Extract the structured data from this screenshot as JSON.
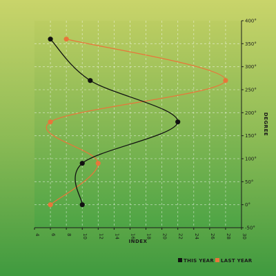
{
  "chart_data": {
    "type": "line",
    "xlabel": "INDEX",
    "ylabel": "DEGREE",
    "xlim": [
      4,
      30
    ],
    "ylim": [
      -50,
      400
    ],
    "x_ticks": [
      4,
      6,
      8,
      10,
      12,
      14,
      16,
      18,
      20,
      22,
      24,
      26,
      28,
      30
    ],
    "y_ticks": [
      -50,
      0,
      50,
      100,
      150,
      200,
      250,
      300,
      350,
      400
    ],
    "y_tick_labels": [
      "-50°",
      "0°",
      "50°",
      "100°",
      "150°",
      "200°",
      "250°",
      "300°",
      "350°",
      "400°"
    ],
    "grid": true,
    "legend_position": "bottom-right",
    "series": [
      {
        "name": "THIS YEAR",
        "color": "#111111",
        "points": [
          {
            "x": 10,
            "y": 0
          },
          {
            "x": 10,
            "y": 90
          },
          {
            "x": 22,
            "y": 180
          },
          {
            "x": 11,
            "y": 270
          },
          {
            "x": 6,
            "y": 360
          }
        ]
      },
      {
        "name": "LAST YEAR",
        "color": "#e8763a",
        "points": [
          {
            "x": 6,
            "y": 0
          },
          {
            "x": 12,
            "y": 90
          },
          {
            "x": 6,
            "y": 180
          },
          {
            "x": 28,
            "y": 270
          },
          {
            "x": 8,
            "y": 360
          }
        ]
      }
    ]
  }
}
